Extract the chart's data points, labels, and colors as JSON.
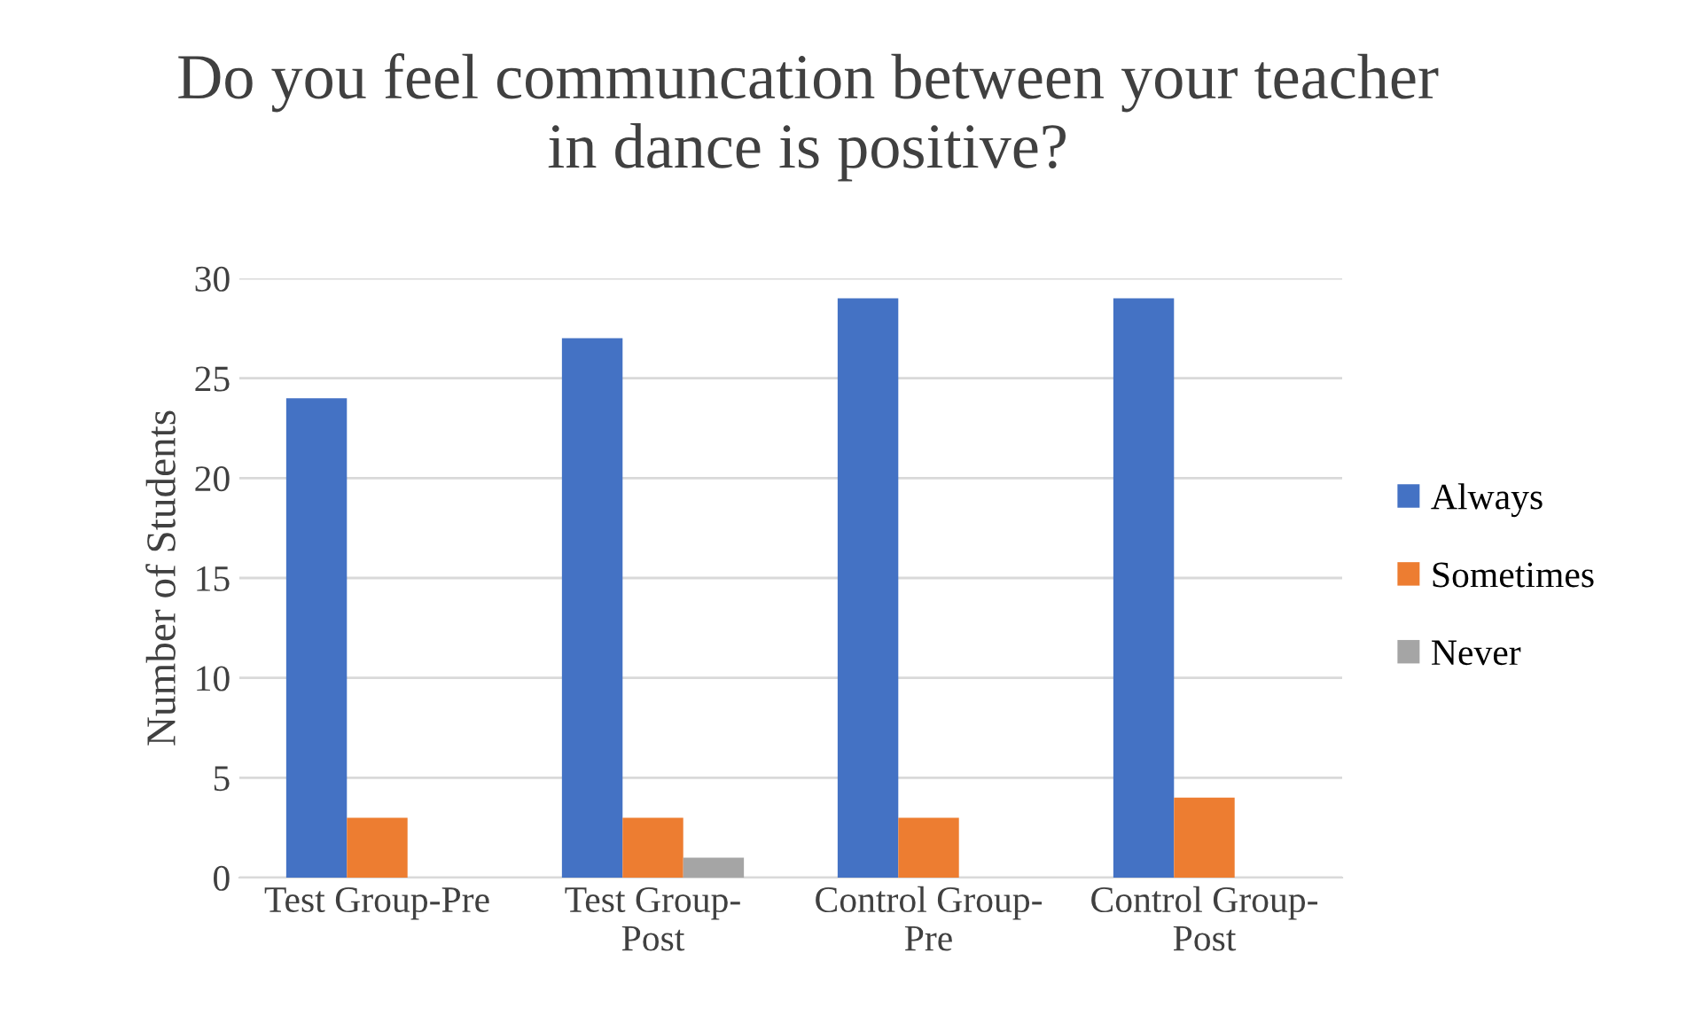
{
  "chart_data": {
    "type": "bar",
    "title": "Do you feel communcation between your teacher\nin dance is positive?",
    "ylabel": "Number of Students",
    "categories": [
      "Test Group-Pre",
      "Test Group-\nPost",
      "Control Group-\nPre",
      "Control Group-\nPost"
    ],
    "series": [
      {
        "name": "Always",
        "color": "#4472c4",
        "values": [
          24,
          27,
          29,
          29
        ]
      },
      {
        "name": "Sometimes",
        "color": "#ed7d31",
        "values": [
          3,
          3,
          3,
          4
        ]
      },
      {
        "name": "Never",
        "color": "#a5a5a5",
        "values": [
          0,
          1,
          0,
          0
        ]
      }
    ],
    "ylim": [
      0,
      30
    ],
    "yticks": [
      0,
      5,
      10,
      15,
      20,
      25,
      30
    ],
    "grid": "y",
    "legend": "right"
  }
}
